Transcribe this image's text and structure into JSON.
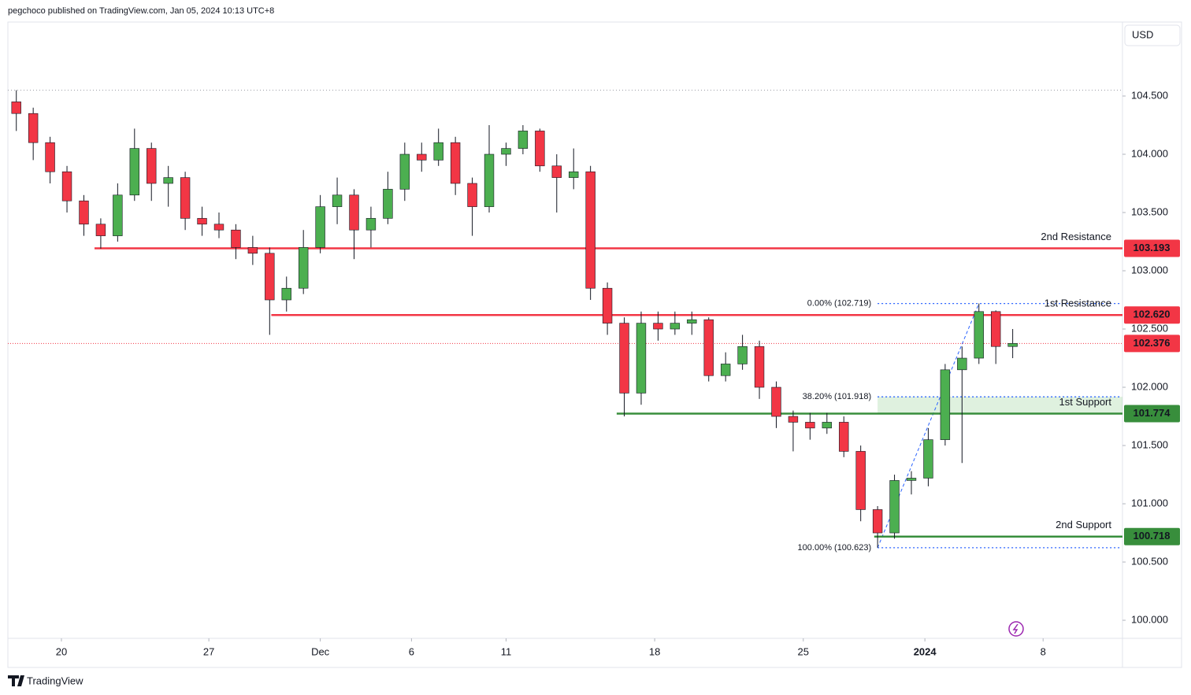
{
  "header": "pegchoco published on TradingView.com, Jan 05, 2024 10:13 UTC+8",
  "footer": "TradingView",
  "chart_data": {
    "type": "candlestick",
    "currency": "USD",
    "up_color": "#4caf50",
    "down_color": "#f23645",
    "xlim": [
      0,
      66
    ],
    "ylim": [
      99.845,
      105.135
    ],
    "xticks": [
      {
        "value": 3.17,
        "label": "20"
      },
      {
        "value": 11.9,
        "label": "27"
      },
      {
        "value": 18.5,
        "label": "Dec"
      },
      {
        "value": 23.9,
        "label": "6"
      },
      {
        "value": 29.5,
        "label": "11"
      },
      {
        "value": 38.3,
        "label": "18"
      },
      {
        "value": 47.1,
        "label": "25"
      },
      {
        "value": 54.3,
        "label": "2024"
      },
      {
        "value": 61.3,
        "label": "8"
      }
    ],
    "yticks": [
      {
        "value": 100,
        "label": "100.000"
      },
      {
        "value": 100.5,
        "label": "100.500"
      },
      {
        "value": 101,
        "label": "101.000"
      },
      {
        "value": 101.5,
        "label": "101.500"
      },
      {
        "value": 102,
        "label": "102.000"
      },
      {
        "value": 102.5,
        "label": "102.500"
      },
      {
        "value": 103,
        "label": "103.000"
      },
      {
        "value": 103.5,
        "label": "103.500"
      },
      {
        "value": 104,
        "label": "104.000"
      },
      {
        "value": 104.5,
        "label": "104.500"
      }
    ],
    "x": [
      0.5,
      1.5,
      2.5,
      3.5,
      4.5,
      5.5,
      6.5,
      7.5,
      8.5,
      9.5,
      10.5,
      11.5,
      12.5,
      13.5,
      14.5,
      15.5,
      16.5,
      17.5,
      18.5,
      19.5,
      20.5,
      21.5,
      22.5,
      23.5,
      24.5,
      25.5,
      26.5,
      27.5,
      28.5,
      29.5,
      30.5,
      31.5,
      32.5,
      33.5,
      34.5,
      35.5,
      36.5,
      37.5,
      38.5,
      39.5,
      40.5,
      41.5,
      42.5,
      43.5,
      44.5,
      45.5,
      46.5,
      47.5,
      48.5,
      49.5,
      50.5,
      51.5,
      52.5,
      53.5,
      54.5,
      55.5,
      56.5,
      57.5,
      58.5,
      59.5
    ],
    "open": [
      104.45,
      104.35,
      104.1,
      103.85,
      103.6,
      103.4,
      103.3,
      103.65,
      104.05,
      103.75,
      103.8,
      103.45,
      103.4,
      103.35,
      103.2,
      103.15,
      102.75,
      102.85,
      103.2,
      103.55,
      103.65,
      103.35,
      103.45,
      103.7,
      104.0,
      103.95,
      104.1,
      103.75,
      103.55,
      104.0,
      104.05,
      104.2,
      103.9,
      103.8,
      103.85,
      102.85,
      102.55,
      101.95,
      102.55,
      102.5,
      102.55,
      102.58,
      102.1,
      102.2,
      102.35,
      102.0,
      101.75,
      101.7,
      101.65,
      101.7,
      101.45,
      100.95,
      100.75,
      101.2,
      101.22,
      101.55,
      102.15,
      102.25,
      102.65,
      102.35
    ],
    "high": [
      104.55,
      104.4,
      104.15,
      103.9,
      103.65,
      103.45,
      103.75,
      104.22,
      104.1,
      103.9,
      103.85,
      103.55,
      103.5,
      103.4,
      103.3,
      103.2,
      102.95,
      103.35,
      103.65,
      103.8,
      103.7,
      103.55,
      103.85,
      104.1,
      104.1,
      104.22,
      104.15,
      103.8,
      104.25,
      104.1,
      104.25,
      104.22,
      104.0,
      104.05,
      103.9,
      102.9,
      102.6,
      102.65,
      102.65,
      102.65,
      102.65,
      102.6,
      102.3,
      102.45,
      102.4,
      102.05,
      101.8,
      101.78,
      101.78,
      101.75,
      101.5,
      100.98,
      101.25,
      101.28,
      101.65,
      102.2,
      102.35,
      102.719,
      102.66,
      102.5
    ],
    "low": [
      104.2,
      103.95,
      103.75,
      103.5,
      103.3,
      103.19,
      103.25,
      103.6,
      103.6,
      103.55,
      103.35,
      103.3,
      103.28,
      103.1,
      103.05,
      102.45,
      102.65,
      102.8,
      103.15,
      103.4,
      103.1,
      103.2,
      103.4,
      103.6,
      103.85,
      103.9,
      103.65,
      103.3,
      103.5,
      103.9,
      104.0,
      103.85,
      103.5,
      103.7,
      102.75,
      102.45,
      101.75,
      101.85,
      102.4,
      102.45,
      102.45,
      102.05,
      102.05,
      102.15,
      101.9,
      101.65,
      101.45,
      101.55,
      101.6,
      101.4,
      100.85,
      100.623,
      100.7,
      101.08,
      101.15,
      101.5,
      101.35,
      102.2,
      102.2,
      102.25
    ],
    "close": [
      104.35,
      104.1,
      103.85,
      103.6,
      103.4,
      103.3,
      103.65,
      104.05,
      103.75,
      103.8,
      103.45,
      103.4,
      103.35,
      103.2,
      103.15,
      102.75,
      102.85,
      103.2,
      103.55,
      103.65,
      103.35,
      103.45,
      103.7,
      104.0,
      103.95,
      104.1,
      103.75,
      103.55,
      104.0,
      104.05,
      104.2,
      103.9,
      103.8,
      103.85,
      102.85,
      102.55,
      101.95,
      102.55,
      102.5,
      102.55,
      102.58,
      102.1,
      102.2,
      102.35,
      102.0,
      101.75,
      101.7,
      101.65,
      101.7,
      101.45,
      100.95,
      100.75,
      101.2,
      101.22,
      101.55,
      102.15,
      102.25,
      102.65,
      102.35,
      102.376
    ],
    "levels": [
      {
        "name": "2nd Resistance",
        "value": 103.193,
        "color": "#f23645",
        "from": 5.13
      },
      {
        "name": "1st Resistance",
        "value": 102.62,
        "value_label": "102.620",
        "color": "#f23645",
        "from": 15.6
      },
      {
        "name": "1st Support",
        "value": 101.774,
        "color": "#388e3c",
        "from": 36.05
      },
      {
        "name": "2nd Support",
        "value": 100.718,
        "color": "#388e3c",
        "from": 51.3
      }
    ],
    "fib": {
      "color": "#2962ff",
      "from": 51.5,
      "to": 57.5,
      "levels": [
        {
          "label": "0.00% (102.719)",
          "value": 102.719
        },
        {
          "label": "38.20% (101.918)",
          "value": 101.918
        },
        {
          "label": "100.00% (100.623)",
          "value": 100.623
        }
      ]
    }
  }
}
